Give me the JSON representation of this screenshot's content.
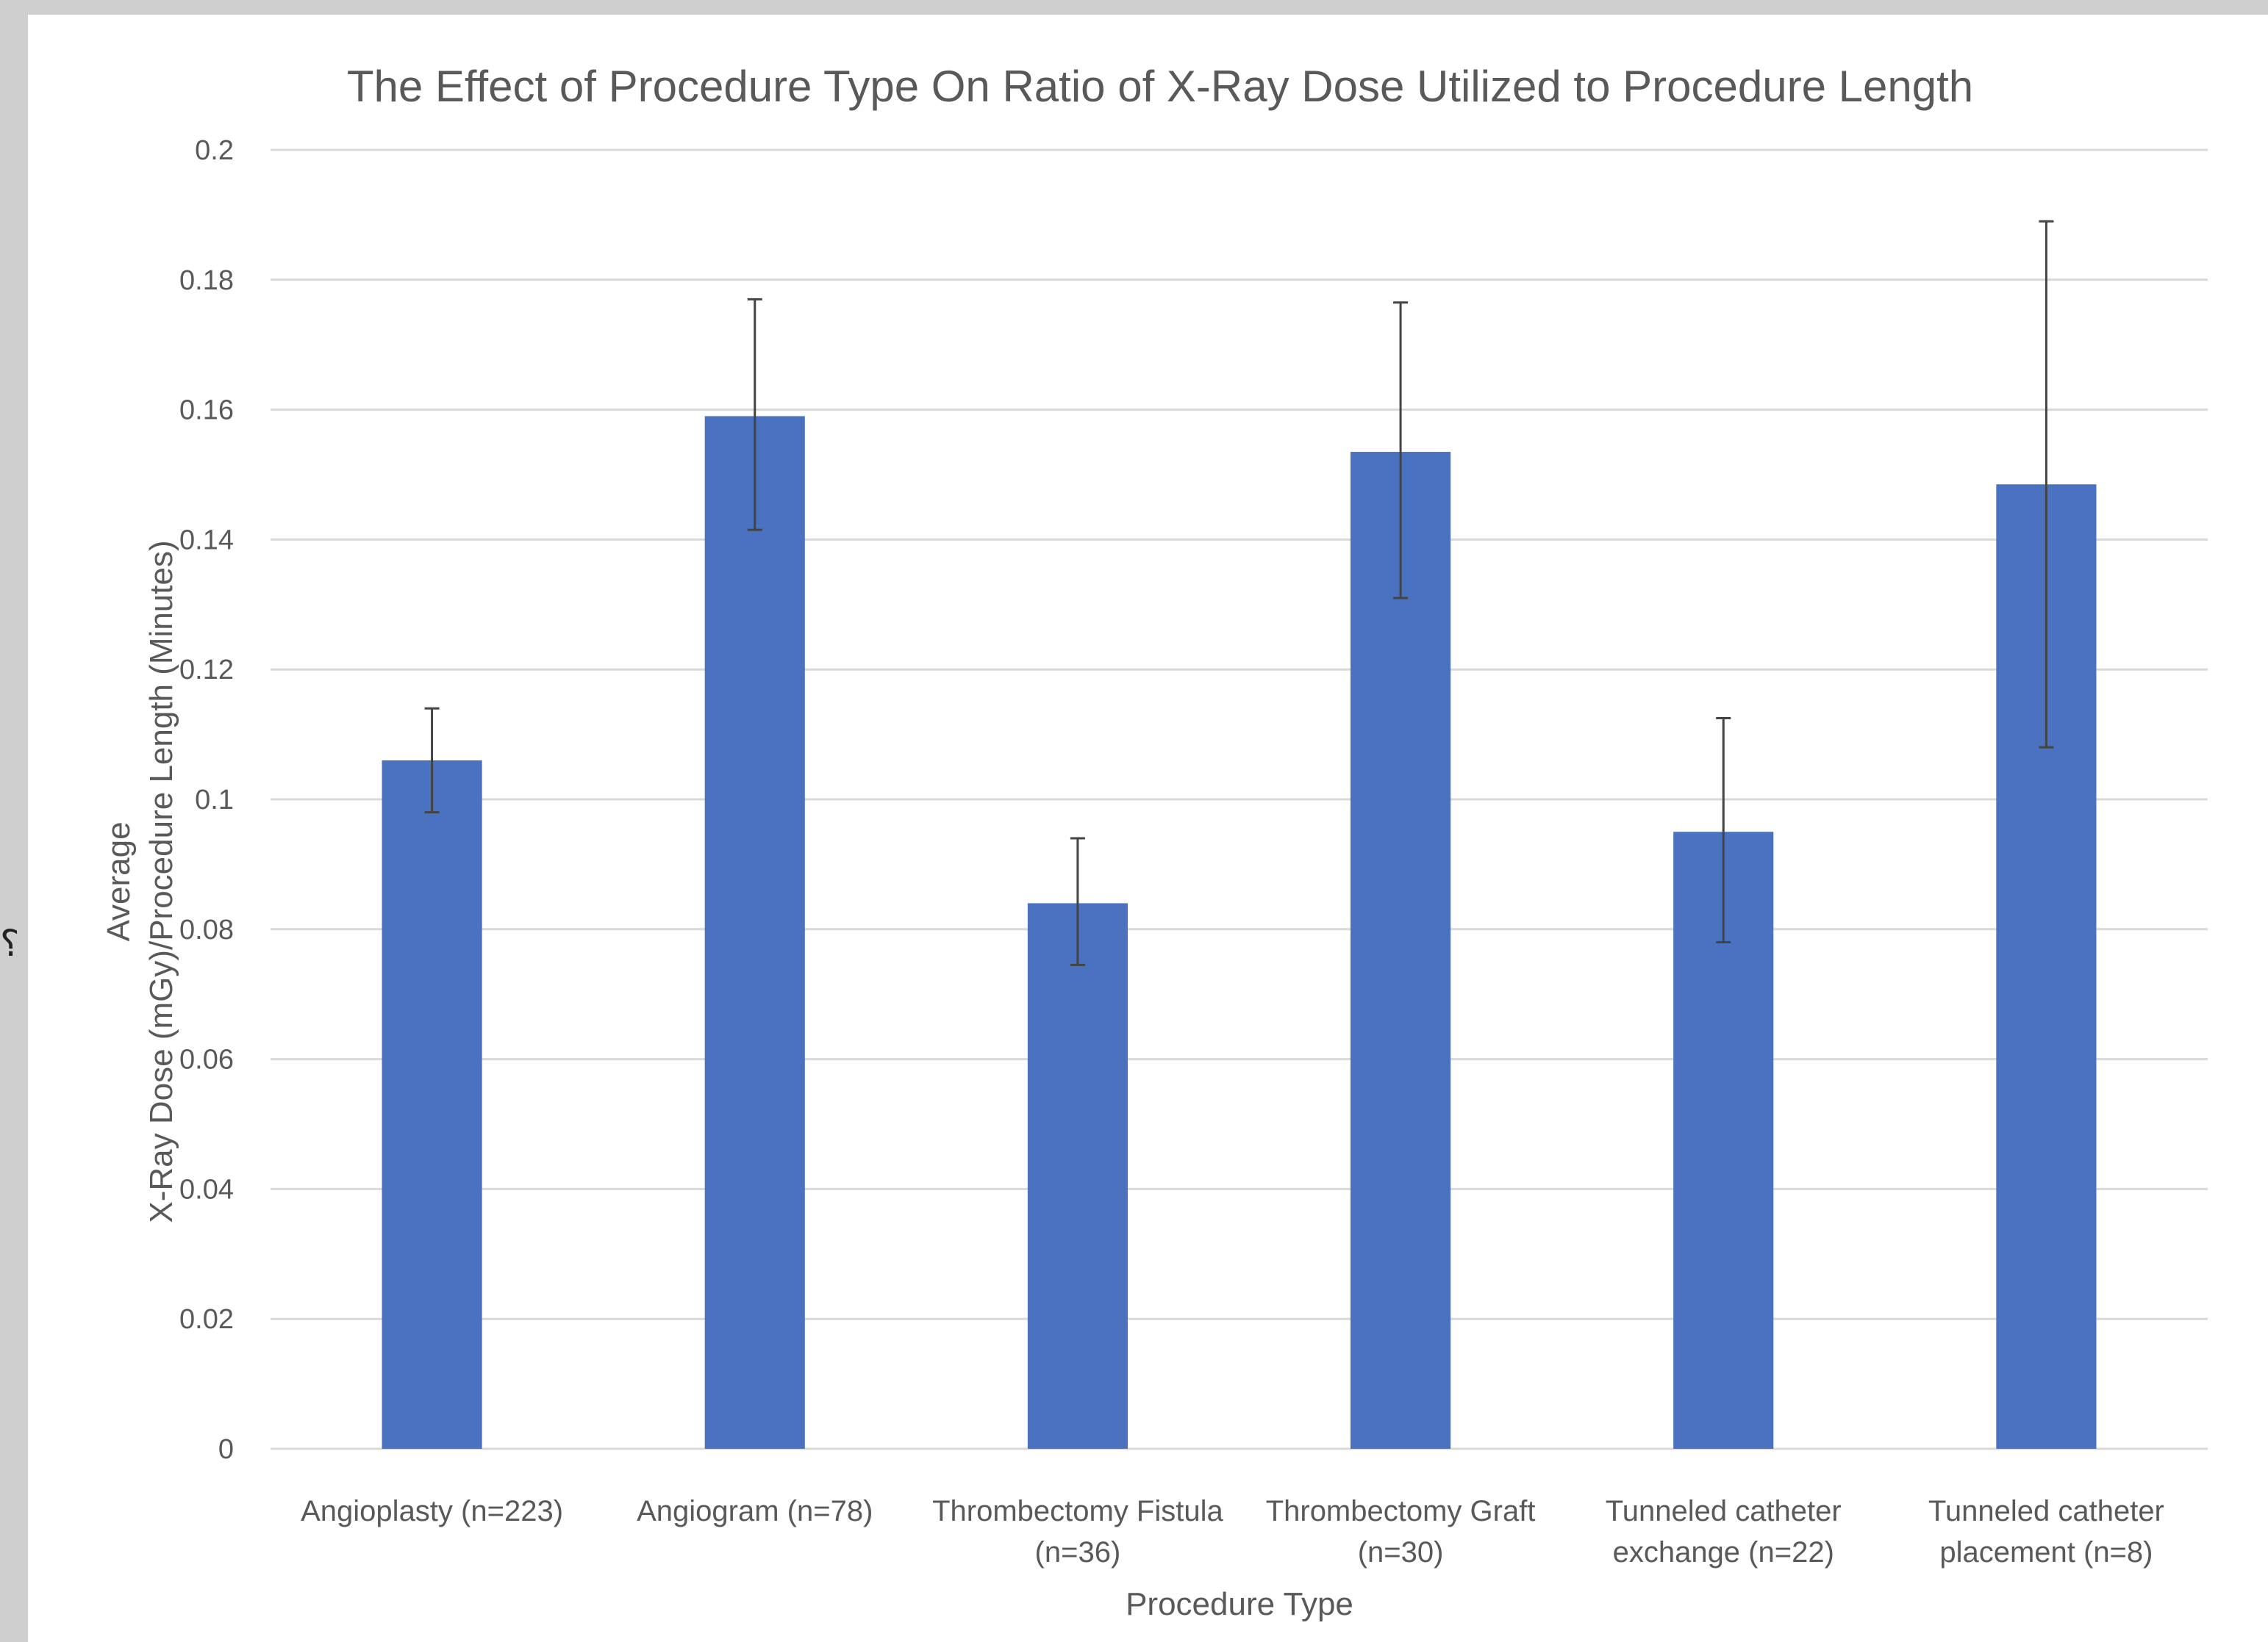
{
  "chart_data": {
    "type": "bar",
    "title": "The Effect of Procedure Type On Ratio of X-Ray Dose Utilized to Procedure Length",
    "xlabel": "Procedure Type",
    "ylabel_lines": [
      "Average",
      "X-Ray Dose (mGy)/Procedure Length (Minutes)"
    ],
    "categories": [
      [
        "Angioplasty (n=223)"
      ],
      [
        "Angiogram (n=78)"
      ],
      [
        "Thrombectomy Fistula",
        "(n=36)"
      ],
      [
        "Thrombectomy Graft",
        "(n=30)"
      ],
      [
        "Tunneled catheter",
        "exchange (n=22)"
      ],
      [
        "Tunneled catheter",
        "placement (n=8)"
      ]
    ],
    "values": [
      0.106,
      0.159,
      0.084,
      0.1535,
      0.095,
      0.1485
    ],
    "error_bars": [
      [
        0.098,
        0.114
      ],
      [
        0.1415,
        0.177
      ],
      [
        0.0745,
        0.094
      ],
      [
        0.131,
        0.1765
      ],
      [
        0.078,
        0.1125
      ],
      [
        0.108,
        0.189
      ]
    ],
    "yticks": [
      "0",
      "0.02",
      "0.04",
      "0.06",
      "0.08",
      "0.1",
      "0.12",
      "0.14",
      "0.16",
      "0.18",
      "0.2"
    ],
    "ylim": [
      0,
      0.2
    ],
    "grid": true,
    "bar_color": "#4a72c0"
  }
}
